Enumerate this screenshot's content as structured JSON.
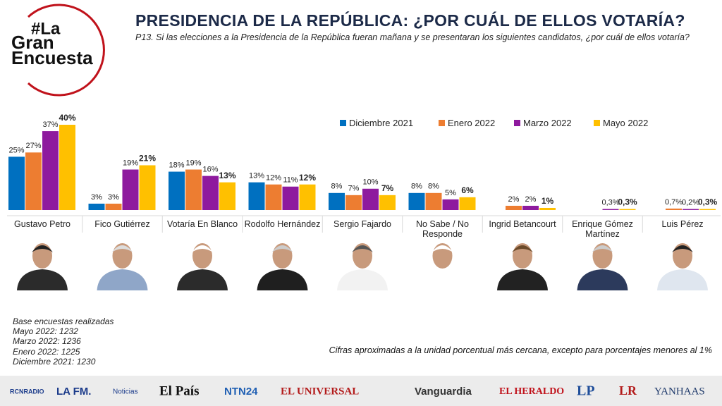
{
  "logo": {
    "line1": "#La",
    "line2": "Gran",
    "line3": "Encuesta"
  },
  "chart_data": {
    "type": "bar",
    "title": "PRESIDENCIA DE LA REPÚBLICA: ¿POR CUÁL DE ELLOS VOTARÍA?",
    "subtitle": "P13. Si las elecciones a la Presidencia de la República fueran mañana y se presentaran los siguientes candidatos, ¿por cuál de ellos votaría?",
    "categories": [
      "Gustavo Petro",
      "Fico Gutiérrez",
      "Votaría En Blanco",
      "Rodolfo Hernández",
      "Sergio Fajardo",
      "No Sabe / No Responde",
      "Ingrid Betancourt",
      "Enrique Gómez Martínez",
      "Luis Pérez"
    ],
    "series": [
      {
        "name": "Diciembre 2021",
        "color": "#0070c0",
        "values": [
          25,
          3,
          18,
          13,
          8,
          8,
          null,
          null,
          null
        ],
        "value_labels": [
          "25%",
          "3%",
          "18%",
          "13%",
          "8%",
          "8%",
          null,
          null,
          null
        ]
      },
      {
        "name": "Enero 2022",
        "color": "#ed7d31",
        "values": [
          27,
          3,
          19,
          12,
          7,
          8,
          2,
          null,
          0.7
        ],
        "value_labels": [
          "27%",
          "3%",
          "19%",
          "12%",
          "7%",
          "8%",
          "2%",
          null,
          "0,7%"
        ]
      },
      {
        "name": "Marzo 2022",
        "color": "#8e1a9e",
        "values": [
          37,
          19,
          16,
          11,
          10,
          5,
          2,
          0.3,
          0.2
        ],
        "value_labels": [
          "37%",
          "19%",
          "16%",
          "11%",
          "10%",
          "5%",
          "2%",
          "0,3%",
          "0,2%"
        ]
      },
      {
        "name": "Mayo 2022",
        "color": "#ffc000",
        "values": [
          40,
          21,
          13,
          12,
          7,
          6,
          1,
          0.3,
          0.3
        ],
        "value_labels": [
          "40%",
          "21%",
          "13%",
          "12%",
          "7%",
          "6%",
          "1%",
          "0,3%",
          "0,3%"
        ],
        "bold_labels": true
      }
    ]
  },
  "notes": {
    "base_title": "Base encuestas realizadas",
    "base": [
      "Mayo 2022: 1232",
      "Marzo 2022: 1236",
      "Enero 2022: 1225",
      "Diciembre 2021: 1230"
    ],
    "footnote": "Cifras aproximadas a la unidad porcentual más cercana, excepto para porcentajes menores al 1%"
  },
  "footer": {
    "logos": [
      "RCNRADIO",
      "LA FM.",
      "Noticias",
      "El País",
      "NTN24",
      "EL UNIVERSAL",
      "Vanguardia",
      "EL HERALDO",
      "LP",
      "LR",
      "YANHAAS"
    ]
  }
}
